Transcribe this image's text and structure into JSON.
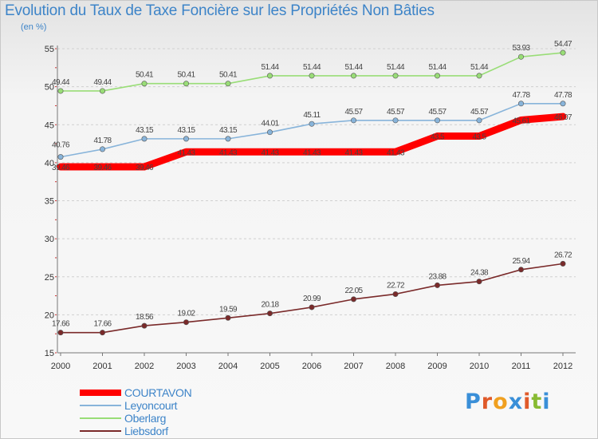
{
  "title": "Evolution du Taux de Taxe Foncière sur les Propriétés Non Bâties",
  "unit_label": "(en %)",
  "logo": {
    "text": "Proxiti",
    "letters": [
      "P",
      "r",
      "o",
      "x",
      "i",
      "t",
      "i"
    ],
    "colors": [
      "#3a8fd8",
      "#e05a2a",
      "#f0a020",
      "#3a8fd8",
      "#e05a2a",
      "#88bb33",
      "#3a8fd8"
    ]
  },
  "chart_data": {
    "type": "line",
    "title": "Evolution du Taux de Taxe Foncière sur les Propriétés Non Bâties",
    "ylabel": "(en %)",
    "xlabel": "",
    "ylim": [
      15,
      55
    ],
    "yticks": [
      15,
      20,
      25,
      30,
      35,
      40,
      45,
      50,
      55
    ],
    "categories": [
      "2000",
      "2001",
      "2002",
      "2003",
      "2004",
      "2005",
      "2006",
      "2007",
      "2008",
      "2009",
      "2010",
      "2011",
      "2012"
    ],
    "grid": "horizontal dashed",
    "legend_position": "bottom-left",
    "series": [
      {
        "name": "COURTAVON",
        "color": "#ff0000",
        "values": [
          39.46,
          39.46,
          39.46,
          41.43,
          41.43,
          41.43,
          41.43,
          41.43,
          41.43,
          43.5,
          43.5,
          45.61,
          46.07
        ],
        "labels": [
          "39.46",
          "39.46",
          "39.46",
          "41.43",
          "41.43",
          "41.43",
          "41.43",
          "41.43",
          "41.43",
          "43.5",
          "43.5",
          "45.61",
          "46.07"
        ]
      },
      {
        "name": "Leyoncourt",
        "color": "#88b4da",
        "values": [
          40.76,
          41.78,
          43.15,
          43.15,
          43.15,
          44.01,
          45.11,
          45.57,
          45.57,
          45.57,
          45.57,
          47.78,
          47.78
        ],
        "labels": [
          "40.76",
          "41.78",
          "43.15",
          "43.15",
          "43.15",
          "44.01",
          "45.11",
          "45.57",
          "45.57",
          "45.57",
          "45.57",
          "47.78",
          "47.78"
        ]
      },
      {
        "name": "Oberlarg",
        "color": "#99dd77",
        "values": [
          49.44,
          49.44,
          50.41,
          50.41,
          50.41,
          51.44,
          51.44,
          51.44,
          51.44,
          51.44,
          51.44,
          53.93,
          54.47
        ],
        "labels": [
          "49.44",
          "49.44",
          "50.41",
          "50.41",
          "50.41",
          "51.44",
          "51.44",
          "51.44",
          "51.44",
          "51.44",
          "51.44",
          "53.93",
          "54.47"
        ]
      },
      {
        "name": "Liebsdorf",
        "color": "#7a2a2a",
        "values": [
          17.66,
          17.66,
          18.56,
          19.02,
          19.59,
          20.18,
          20.99,
          22.05,
          22.72,
          23.88,
          24.38,
          25.94,
          26.72
        ],
        "labels": [
          "17.66",
          "17.66",
          "18.56",
          "19.02",
          "19.59",
          "20.18",
          "20.99",
          "22.05",
          "22.72",
          "23.88",
          "24.38",
          "25.94",
          "26.72"
        ]
      }
    ]
  }
}
